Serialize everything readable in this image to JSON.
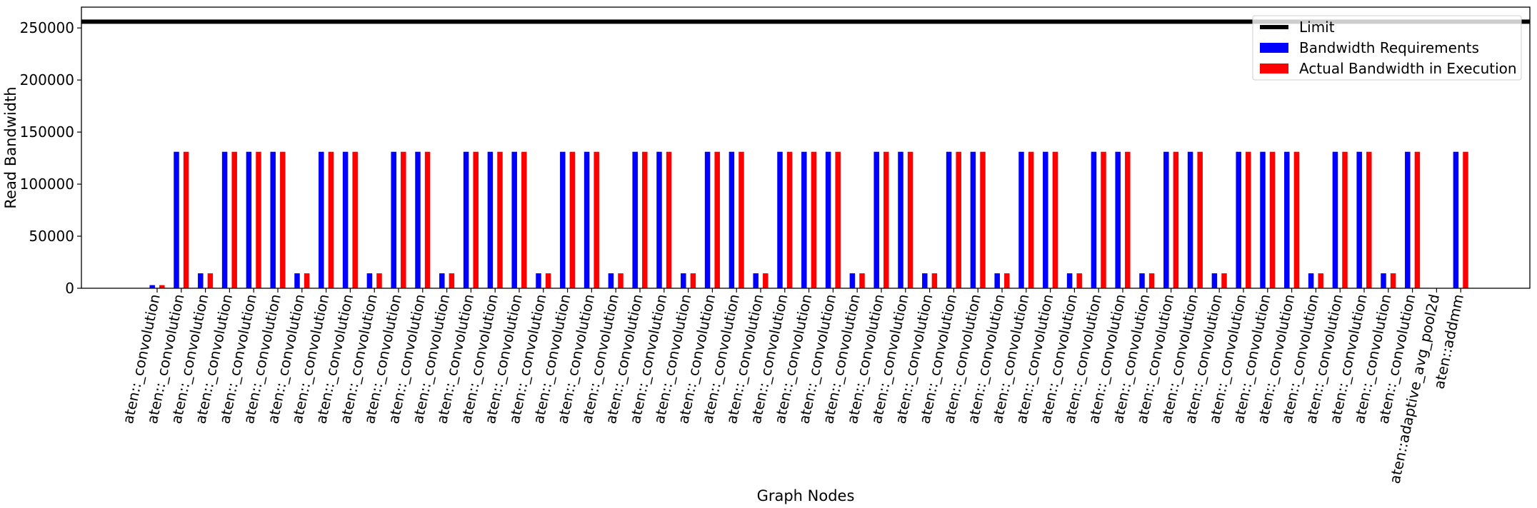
{
  "chart_data": {
    "type": "bar",
    "xlabel": "Graph Nodes",
    "ylabel": "Read Bandwidth",
    "ylim": [
      0,
      270000
    ],
    "yticks": [
      0,
      50000,
      100000,
      150000,
      200000,
      250000
    ],
    "ytick_labels": [
      "0",
      "50000",
      "100000",
      "150000",
      "200000",
      "250000"
    ],
    "limit": {
      "name": "Limit",
      "value": 256000,
      "color": "#000000"
    },
    "legend_position": "top-right",
    "grid": false,
    "categories": [
      "aten::_convolution",
      "aten::_convolution",
      "aten::_convolution",
      "aten::_convolution",
      "aten::_convolution",
      "aten::_convolution",
      "aten::_convolution",
      "aten::_convolution",
      "aten::_convolution",
      "aten::_convolution",
      "aten::_convolution",
      "aten::_convolution",
      "aten::_convolution",
      "aten::_convolution",
      "aten::_convolution",
      "aten::_convolution",
      "aten::_convolution",
      "aten::_convolution",
      "aten::_convolution",
      "aten::_convolution",
      "aten::_convolution",
      "aten::_convolution",
      "aten::_convolution",
      "aten::_convolution",
      "aten::_convolution",
      "aten::_convolution",
      "aten::_convolution",
      "aten::_convolution",
      "aten::_convolution",
      "aten::_convolution",
      "aten::_convolution",
      "aten::_convolution",
      "aten::_convolution",
      "aten::_convolution",
      "aten::_convolution",
      "aten::_convolution",
      "aten::_convolution",
      "aten::_convolution",
      "aten::_convolution",
      "aten::_convolution",
      "aten::_convolution",
      "aten::_convolution",
      "aten::_convolution",
      "aten::_convolution",
      "aten::_convolution",
      "aten::_convolution",
      "aten::_convolution",
      "aten::_convolution",
      "aten::_convolution",
      "aten::_convolution",
      "aten::_convolution",
      "aten::_convolution",
      "aten::_convolution",
      "aten::adaptive_avg_pool2d",
      "aten::addmm"
    ],
    "series": [
      {
        "name": "Bandwidth Requirements",
        "color": "#0000ff",
        "values": [
          3000,
          131072,
          14336,
          131072,
          131072,
          131072,
          14336,
          131072,
          131072,
          14336,
          131072,
          131072,
          14336,
          131072,
          131072,
          131072,
          14336,
          131072,
          131072,
          14336,
          131072,
          131072,
          14336,
          131072,
          131072,
          14336,
          131072,
          131072,
          131072,
          14336,
          131072,
          131072,
          14336,
          131072,
          131072,
          14336,
          131072,
          131072,
          14336,
          131072,
          131072,
          14336,
          131072,
          131072,
          14336,
          131072,
          131072,
          131072,
          14336,
          131072,
          131072,
          14336,
          131072,
          0,
          131072
        ]
      },
      {
        "name": "Actual Bandwidth in Execution",
        "color": "#ff0000",
        "values": [
          3000,
          131072,
          14336,
          131072,
          131072,
          131072,
          14336,
          131072,
          131072,
          14336,
          131072,
          131072,
          14336,
          131072,
          131072,
          131072,
          14336,
          131072,
          131072,
          14336,
          131072,
          131072,
          14336,
          131072,
          131072,
          14336,
          131072,
          131072,
          131072,
          14336,
          131072,
          131072,
          14336,
          131072,
          131072,
          14336,
          131072,
          131072,
          14336,
          131072,
          131072,
          14336,
          131072,
          131072,
          14336,
          131072,
          131072,
          131072,
          14336,
          131072,
          131072,
          14336,
          131072,
          0,
          131072
        ]
      }
    ]
  }
}
